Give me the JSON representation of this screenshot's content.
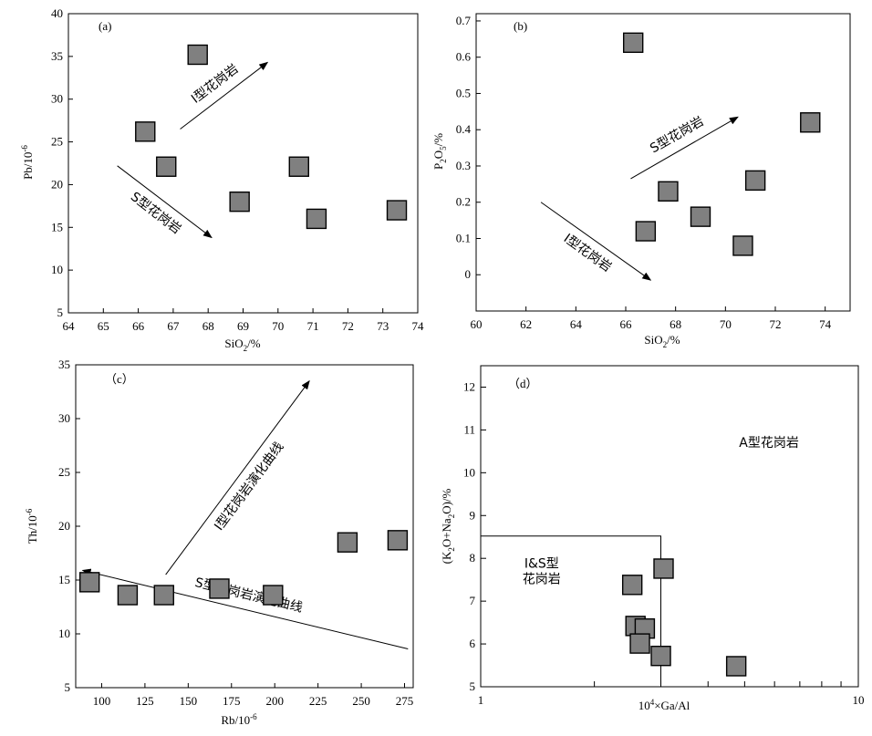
{
  "chart_data": [
    {
      "type": "scatter",
      "panel": "(a)",
      "xlabel": "SiO2/%",
      "ylabel": "Pb/10-6",
      "xlim": [
        64,
        74
      ],
      "ylim": [
        5,
        40
      ],
      "xticks": [
        "64",
        "65",
        "66",
        "67",
        "68",
        "69",
        "70",
        "71",
        "72",
        "73",
        "74"
      ],
      "yticks": [
        "5",
        "10",
        "15",
        "20",
        "25",
        "30",
        "35",
        "40"
      ],
      "points": [
        {
          "x": 66.2,
          "y": 26.2
        },
        {
          "x": 66.8,
          "y": 22.1
        },
        {
          "x": 67.7,
          "y": 35.2
        },
        {
          "x": 68.9,
          "y": 18.0
        },
        {
          "x": 70.6,
          "y": 22.1
        },
        {
          "x": 71.1,
          "y": 16.0
        },
        {
          "x": 73.4,
          "y": 17.0
        }
      ],
      "annotations": [
        {
          "text": "I型花岗岩",
          "from": [
            67.2,
            26.5
          ],
          "to": [
            69.7,
            34.3
          ]
        },
        {
          "text": "S型花岗岩",
          "from": [
            65.4,
            22.2
          ],
          "to": [
            68.1,
            13.8
          ]
        }
      ]
    },
    {
      "type": "scatter",
      "panel": "(b)",
      "xlabel": "SiO2/%",
      "ylabel": "P2O5/%",
      "xlim": [
        60,
        75
      ],
      "ylim": [
        -0.1,
        0.72
      ],
      "xticks": [
        "60",
        "62",
        "64",
        "66",
        "68",
        "70",
        "72",
        "74"
      ],
      "yticks": [
        "0",
        "0.1",
        "0.2",
        "0.3",
        "0.4",
        "0.5",
        "0.6",
        "0.7"
      ],
      "points": [
        {
          "x": 66.3,
          "y": 0.64
        },
        {
          "x": 66.8,
          "y": 0.12
        },
        {
          "x": 67.7,
          "y": 0.23
        },
        {
          "x": 69.0,
          "y": 0.16
        },
        {
          "x": 70.7,
          "y": 0.08
        },
        {
          "x": 71.2,
          "y": 0.26
        },
        {
          "x": 73.4,
          "y": 0.42
        }
      ],
      "annotations": [
        {
          "text": "S型花岗岩",
          "from": [
            66.2,
            0.265
          ],
          "to": [
            70.5,
            0.435
          ]
        },
        {
          "text": "I型花岗岩",
          "from": [
            62.6,
            0.2
          ],
          "to": [
            67.0,
            -0.015
          ]
        }
      ]
    },
    {
      "type": "scatter",
      "panel": "（c）",
      "xlabel": "Rb/10-6",
      "ylabel": "Th/10-6",
      "xlim": [
        85,
        280
      ],
      "ylim": [
        5,
        35
      ],
      "xticks": [
        "100",
        "125",
        "150",
        "175",
        "200",
        "225",
        "250",
        "275"
      ],
      "yticks": [
        "5",
        "10",
        "15",
        "20",
        "25",
        "30",
        "35"
      ],
      "points": [
        {
          "x": 93,
          "y": 14.8
        },
        {
          "x": 115,
          "y": 13.6
        },
        {
          "x": 136,
          "y": 13.6
        },
        {
          "x": 168,
          "y": 14.2
        },
        {
          "x": 199,
          "y": 13.6
        },
        {
          "x": 242,
          "y": 18.5
        },
        {
          "x": 271,
          "y": 18.7
        }
      ],
      "annotations": [
        {
          "text": "I型花岗岩演化曲线",
          "from": [
            137,
            15.5
          ],
          "to": [
            220,
            33.5
          ]
        },
        {
          "text": "S型花岗岩演化曲线",
          "from": [
            277,
            8.6
          ],
          "to": [
            89,
            15.9
          ]
        }
      ]
    },
    {
      "type": "scatter",
      "panel": "（d）",
      "xlabel": "10⁴×Ga/Al",
      "ylabel": "(K2O+Na2O)/%",
      "xscale": "log",
      "xlim": [
        1,
        10
      ],
      "ylim": [
        5,
        12.5
      ],
      "xticks": [
        "1",
        "10"
      ],
      "yticks": [
        "5",
        "6",
        "7",
        "8",
        "9",
        "10",
        "11",
        "12"
      ],
      "points": [
        {
          "x": 2.52,
          "y": 7.38
        },
        {
          "x": 2.57,
          "y": 6.42
        },
        {
          "x": 2.72,
          "y": 6.36
        },
        {
          "x": 2.64,
          "y": 6.01
        },
        {
          "x": 3.05,
          "y": 7.76
        },
        {
          "x": 3.0,
          "y": 5.72
        },
        {
          "x": 4.75,
          "y": 5.48
        }
      ],
      "region_lines": [
        [
          [
            1,
            8.52
          ],
          [
            3.0,
            8.52
          ],
          [
            3.0,
            5.0
          ]
        ]
      ],
      "region_labels": [
        {
          "text": "A型花岗岩",
          "x": 5.8,
          "y": 10.6
        },
        {
          "text": "I&S型",
          "x": 1.45,
          "y": 7.78
        },
        {
          "text": "花岗岩",
          "x": 1.45,
          "y": 7.42
        }
      ]
    }
  ]
}
